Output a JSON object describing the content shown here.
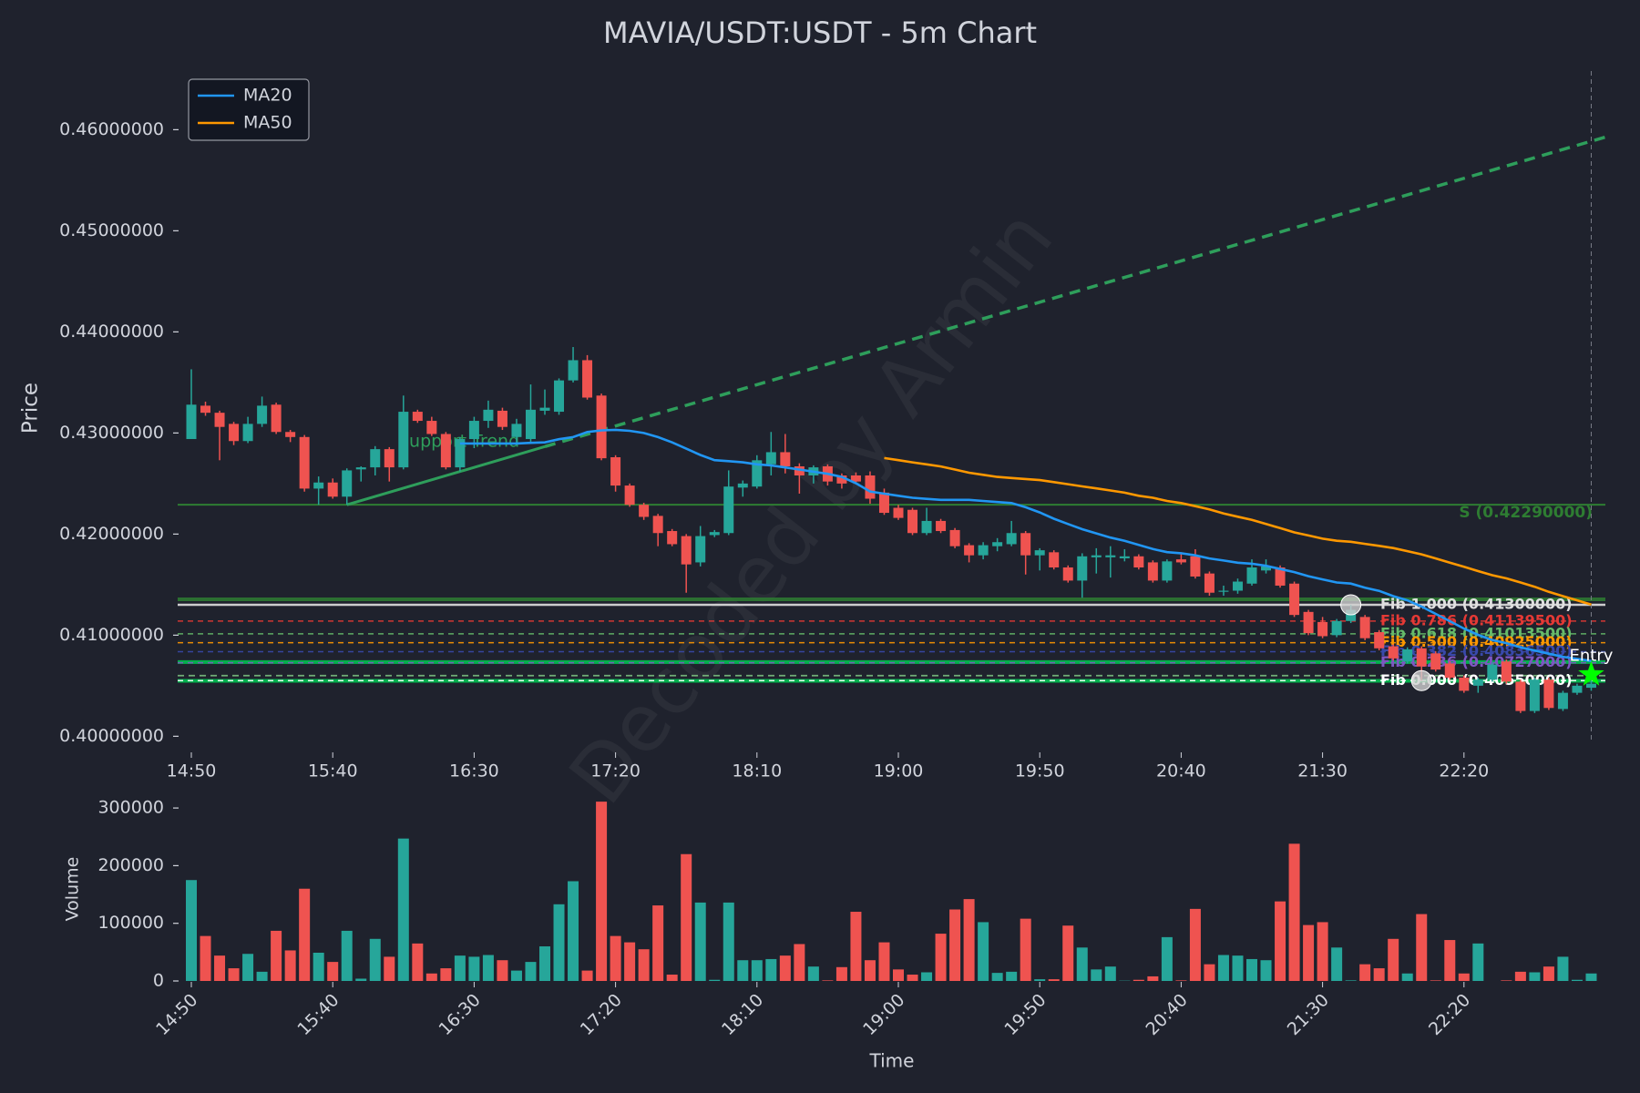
{
  "chart_data": {
    "type": "candlestick",
    "title": "MAVIA/USDT:USDT - 5m Chart",
    "ylabel": "Price",
    "volume_label": "Volume",
    "xlabel": "Time",
    "watermark": "Decoded by Armin",
    "categories": [
      "14:50",
      null,
      null,
      null,
      null,
      null,
      null,
      null,
      null,
      null,
      "15:40",
      null,
      null,
      null,
      null,
      null,
      null,
      null,
      null,
      null,
      "16:30",
      null,
      null,
      null,
      null,
      null,
      null,
      null,
      null,
      null,
      "17:20",
      null,
      null,
      null,
      null,
      null,
      null,
      null,
      null,
      null,
      "18:10",
      null,
      null,
      null,
      null,
      null,
      null,
      null,
      null,
      null,
      "19:00",
      null,
      null,
      null,
      null,
      null,
      null,
      null,
      null,
      null,
      "19:50",
      null,
      null,
      null,
      null,
      null,
      null,
      null,
      null,
      null,
      "20:40",
      null,
      null,
      null,
      null,
      null,
      null,
      null,
      null,
      null,
      "21:30",
      null,
      null,
      null,
      null,
      null,
      null,
      null,
      null,
      null,
      "22:20",
      null,
      null,
      null,
      null,
      null,
      null,
      null,
      null,
      null
    ],
    "open": [
      0.4294,
      0.4327,
      0.432,
      0.4309,
      0.4292,
      0.4309,
      0.4328,
      0.4301,
      0.4296,
      0.4245,
      0.4251,
      0.4237,
      0.4264,
      0.4266,
      0.4284,
      0.4266,
      0.4321,
      0.4312,
      0.4299,
      0.4266,
      0.4294,
      0.4312,
      0.4322,
      0.4296,
      0.4294,
      0.4322,
      0.4321,
      0.4352,
      0.4372,
      0.4337,
      0.4276,
      0.4248,
      0.4229,
      0.4218,
      0.4203,
      0.4198,
      0.4172,
      0.4199,
      0.4201,
      0.4246,
      0.4247,
      0.4269,
      0.4281,
      0.4267,
      0.4258,
      0.4267,
      0.4258,
      0.4258,
      0.4258,
      0.4241,
      0.4226,
      0.4224,
      0.4201,
      0.4213,
      0.4204,
      0.4189,
      0.4179,
      0.4188,
      0.419,
      0.4201,
      0.4179,
      0.4182,
      0.4167,
      0.4154,
      0.4177,
      0.4177,
      0.4176,
      0.4178,
      0.4172,
      0.4154,
      0.4175,
      0.4178,
      0.4161,
      0.4143,
      0.4144,
      0.4151,
      0.4164,
      0.4167,
      0.4151,
      0.4123,
      0.4113,
      0.41,
      0.4114,
      0.4118,
      0.4103,
      0.4089,
      0.4074,
      0.4087,
      0.4082,
      0.4072,
      0.4058,
      0.405,
      0.4056,
      0.4074,
      0.4054,
      0.4025,
      0.4056,
      0.4027,
      0.4043,
      0.4048
    ],
    "high": [
      0.4363,
      0.4331,
      0.4322,
      0.4311,
      0.4316,
      0.4336,
      0.433,
      0.4303,
      0.4298,
      0.4257,
      0.4255,
      0.4265,
      0.4267,
      0.4287,
      0.4286,
      0.4337,
      0.4323,
      0.4316,
      0.4301,
      0.4296,
      0.4316,
      0.4332,
      0.4325,
      0.4314,
      0.4348,
      0.4343,
      0.4354,
      0.4385,
      0.4377,
      0.4339,
      0.4278,
      0.425,
      0.4231,
      0.422,
      0.4205,
      0.42,
      0.4208,
      0.4204,
      0.4263,
      0.4253,
      0.4278,
      0.4301,
      0.4299,
      0.427,
      0.4268,
      0.4269,
      0.426,
      0.4261,
      0.4262,
      0.4245,
      0.4229,
      0.4226,
      0.4226,
      0.4215,
      0.4206,
      0.4191,
      0.4192,
      0.4196,
      0.4213,
      0.4203,
      0.4186,
      0.4184,
      0.4169,
      0.4181,
      0.4186,
      0.4188,
      0.4185,
      0.418,
      0.4174,
      0.4175,
      0.4182,
      0.4185,
      0.4163,
      0.4149,
      0.4156,
      0.4175,
      0.4175,
      0.4169,
      0.4153,
      0.4125,
      0.4118,
      0.4116,
      0.413,
      0.412,
      0.4105,
      0.4091,
      0.4088,
      0.4089,
      0.4084,
      0.4074,
      0.406,
      0.4058,
      0.4073,
      0.4076,
      0.4056,
      0.4058,
      0.4058,
      0.4045,
      0.4052,
      0.4055
    ],
    "low": [
      0.4294,
      0.4317,
      0.4273,
      0.4288,
      0.429,
      0.4306,
      0.4299,
      0.4291,
      0.4242,
      0.4229,
      0.4235,
      0.4229,
      0.4252,
      0.4258,
      0.4252,
      0.4264,
      0.431,
      0.4297,
      0.4264,
      0.4262,
      0.4285,
      0.4305,
      0.4303,
      0.429,
      0.429,
      0.4318,
      0.4318,
      0.435,
      0.4333,
      0.4273,
      0.4242,
      0.4227,
      0.4214,
      0.4188,
      0.4188,
      0.4142,
      0.4168,
      0.4197,
      0.4199,
      0.4237,
      0.4245,
      0.4258,
      0.426,
      0.424,
      0.425,
      0.4248,
      0.4245,
      0.425,
      0.423,
      0.4219,
      0.4214,
      0.4199,
      0.4199,
      0.4201,
      0.4186,
      0.4172,
      0.4175,
      0.4183,
      0.4188,
      0.416,
      0.4164,
      0.4165,
      0.4152,
      0.4137,
      0.4161,
      0.4157,
      0.4173,
      0.4165,
      0.4152,
      0.4152,
      0.417,
      0.4156,
      0.4139,
      0.4139,
      0.4141,
      0.4149,
      0.4161,
      0.4147,
      0.4118,
      0.41,
      0.4097,
      0.4098,
      0.4112,
      0.4095,
      0.4085,
      0.4075,
      0.4072,
      0.4055,
      0.4064,
      0.4056,
      0.4043,
      0.4043,
      0.4054,
      0.4052,
      0.4023,
      0.4023,
      0.4026,
      0.4025,
      0.4041,
      0.4045
    ],
    "close": [
      0.4328,
      0.432,
      0.4306,
      0.4292,
      0.4309,
      0.4327,
      0.4301,
      0.4296,
      0.4245,
      0.4251,
      0.4237,
      0.4263,
      0.4266,
      0.4284,
      0.4266,
      0.4321,
      0.4312,
      0.4299,
      0.4266,
      0.4294,
      0.4312,
      0.4323,
      0.4306,
      0.4309,
      0.4323,
      0.4325,
      0.4352,
      0.4372,
      0.4335,
      0.4275,
      0.4248,
      0.4229,
      0.4217,
      0.4201,
      0.419,
      0.417,
      0.4198,
      0.4202,
      0.4247,
      0.425,
      0.4273,
      0.4281,
      0.4267,
      0.4258,
      0.4266,
      0.4252,
      0.425,
      0.4252,
      0.4235,
      0.4221,
      0.4216,
      0.4201,
      0.4213,
      0.4203,
      0.4188,
      0.4179,
      0.4189,
      0.4192,
      0.4201,
      0.4179,
      0.4184,
      0.4167,
      0.4154,
      0.4178,
      0.4179,
      0.4179,
      0.4178,
      0.4167,
      0.4154,
      0.4173,
      0.4172,
      0.4158,
      0.4142,
      0.4144,
      0.4153,
      0.4167,
      0.4168,
      0.4149,
      0.412,
      0.4102,
      0.4099,
      0.4114,
      0.4125,
      0.4097,
      0.4087,
      0.4077,
      0.4086,
      0.4069,
      0.4066,
      0.4058,
      0.4045,
      0.4056,
      0.4071,
      0.4054,
      0.4025,
      0.4056,
      0.4028,
      0.4043,
      0.405,
      0.4052
    ],
    "volume": [
      175000,
      78000,
      44000,
      22000,
      47000,
      16000,
      87000,
      53000,
      160000,
      49000,
      33000,
      87000,
      4000,
      73000,
      42000,
      247000,
      65000,
      13000,
      22000,
      44000,
      42000,
      45000,
      36000,
      18000,
      33000,
      60000,
      133000,
      173000,
      18000,
      311000,
      78000,
      67000,
      55000,
      131000,
      11000,
      220000,
      136000,
      2000,
      136000,
      36000,
      36000,
      38000,
      44000,
      64000,
      25000,
      1000,
      24000,
      120000,
      36000,
      67000,
      20000,
      11000,
      15000,
      82000,
      124000,
      142000,
      102000,
      14000,
      16000,
      108000,
      3000,
      3000,
      96000,
      58000,
      20000,
      25000,
      500,
      2000,
      8000,
      76000,
      1000,
      125000,
      29000,
      45000,
      44000,
      38000,
      36000,
      138000,
      238000,
      97000,
      102000,
      58000,
      1000,
      29000,
      22000,
      73000,
      13000,
      116000,
      1000,
      71000,
      13000,
      65000,
      0,
      1000,
      16000,
      15000,
      25000,
      42000,
      2000,
      13000
    ],
    "up_color": "#26a69a",
    "down_color": "#ef5350",
    "ma": [
      {
        "name": "MA20",
        "color": "#2196f3",
        "values": [
          null,
          null,
          null,
          null,
          null,
          null,
          null,
          null,
          null,
          null,
          null,
          null,
          null,
          null,
          null,
          null,
          null,
          null,
          null,
          0.42896,
          0.42896,
          0.42896,
          0.42896,
          0.42896,
          0.42902,
          0.42907,
          0.42938,
          0.42959,
          0.4301,
          0.43026,
          0.43031,
          0.43021,
          0.43,
          0.42959,
          0.42907,
          0.42845,
          0.42783,
          0.42731,
          0.42721,
          0.4271,
          0.4269,
          0.42679,
          0.42659,
          0.42638,
          0.42617,
          0.42596,
          0.42565,
          0.42503,
          0.42421,
          0.424,
          0.42379,
          0.42359,
          0.42348,
          0.42338,
          0.42338,
          0.42338,
          0.42328,
          0.42317,
          0.42307,
          0.42265,
          0.42214,
          0.42152,
          0.421,
          0.42048,
          0.42007,
          0.41965,
          0.41934,
          0.41893,
          0.41852,
          0.41821,
          0.4181,
          0.4179,
          0.41759,
          0.41738,
          0.41717,
          0.41707,
          0.41686,
          0.41655,
          0.41624,
          0.41583,
          0.41552,
          0.41521,
          0.4151,
          0.41469,
          0.41438,
          0.41386,
          0.41345,
          0.41283,
          0.4121,
          0.41138,
          0.41065,
          0.41003,
          0.40952,
          0.40921,
          0.40879,
          0.40848,
          0.40817,
          0.40786,
          0.40765,
          0.40745
        ]
      },
      {
        "name": "MA50",
        "color": "#ff9800",
        "values": [
          null,
          null,
          null,
          null,
          null,
          null,
          null,
          null,
          null,
          null,
          null,
          null,
          null,
          null,
          null,
          null,
          null,
          null,
          null,
          null,
          null,
          null,
          null,
          null,
          null,
          null,
          null,
          null,
          null,
          null,
          null,
          null,
          null,
          null,
          null,
          null,
          null,
          null,
          null,
          null,
          null,
          null,
          null,
          null,
          null,
          null,
          null,
          null,
          null,
          0.42752,
          0.42731,
          0.4271,
          0.4269,
          0.42669,
          0.42638,
          0.42607,
          0.42586,
          0.42565,
          0.42555,
          0.42545,
          0.42534,
          0.42514,
          0.42493,
          0.42472,
          0.42452,
          0.42431,
          0.4241,
          0.42379,
          0.42359,
          0.42328,
          0.42307,
          0.42276,
          0.42245,
          0.42203,
          0.42172,
          0.42141,
          0.421,
          0.42059,
          0.42017,
          0.41986,
          0.41955,
          0.41934,
          0.41924,
          0.41903,
          0.41883,
          0.41862,
          0.41831,
          0.418,
          0.41759,
          0.41717,
          0.41676,
          0.41634,
          0.41593,
          0.41562,
          0.41521,
          0.41479,
          0.41428,
          0.41386,
          0.41345,
          0.41303
        ]
      }
    ],
    "ylim": [
      0.3985,
      0.4658
    ],
    "yticks": [
      {
        "value": 0.4,
        "label": "0.40000000"
      },
      {
        "value": 0.41,
        "label": "0.41000000"
      },
      {
        "value": 0.42,
        "label": "0.42000000"
      },
      {
        "value": 0.43,
        "label": "0.43000000"
      },
      {
        "value": 0.44,
        "label": "0.44000000"
      },
      {
        "value": 0.45,
        "label": "0.45000000"
      },
      {
        "value": 0.46,
        "label": "0.46000000"
      }
    ],
    "volume_ylim": [
      0,
      327000
    ],
    "volume_yticks": [
      0,
      100000,
      200000,
      300000
    ],
    "support": {
      "label": "S (0.42290000)",
      "value": 0.4229,
      "color": "#2e7d32"
    },
    "fib_levels": [
      {
        "label": "Fib 1.000 (0.41300000)",
        "value": 0.413,
        "color": "#e0e0e0",
        "dashed": false
      },
      {
        "label": "Fib 0.786 (0.41139500)",
        "value": 0.411395,
        "color": "#e53935",
        "dashed": true
      },
      {
        "label": "Fib 0.618 (0.41013500)",
        "value": 0.410135,
        "color": "#66bb6a",
        "dashed": true
      },
      {
        "label": "Fib 0.500 (0.40925000)",
        "value": 0.40925,
        "color": "#ff9800",
        "dashed": true
      },
      {
        "label": "Fib 0.382 (0.40836500)",
        "value": 0.408365,
        "color": "#3949ab",
        "dashed": true
      },
      {
        "label": "Fib 0.236 (0.40727000)",
        "value": 0.40727,
        "color": "#7e57c2",
        "dashed": true
      },
      {
        "label": "Fib 0.000 (0.40550000)",
        "value": 0.4055,
        "color": "#ffffff",
        "dashed": true
      }
    ],
    "extra_levels": [
      {
        "value": 0.41355,
        "color": "#2e7d32",
        "style": "thick"
      },
      {
        "value": 0.40734,
        "color": "#00c853",
        "style": "thick"
      },
      {
        "value": 0.40548,
        "color": "#00c853",
        "style": "thick"
      },
      {
        "value": 0.406,
        "color": "#81c784",
        "style": "dashed"
      }
    ],
    "support_trend": {
      "label": "Support Trend",
      "color": "#2e9e5b",
      "x": [
        11,
        25
      ],
      "values": [
        0.4229,
        0.42865
      ],
      "projection_x": [
        25,
        100
      ],
      "projection_values": [
        0.42865,
        0.45927
      ]
    },
    "swing_points": [
      {
        "x": 82,
        "value": 0.413
      },
      {
        "x": 87,
        "value": 0.4055
      }
    ],
    "entry": {
      "label": "Entry",
      "x": 99,
      "value": 0.4061,
      "color": "#00ff00"
    },
    "current_x": 99,
    "legend": "upper left"
  }
}
